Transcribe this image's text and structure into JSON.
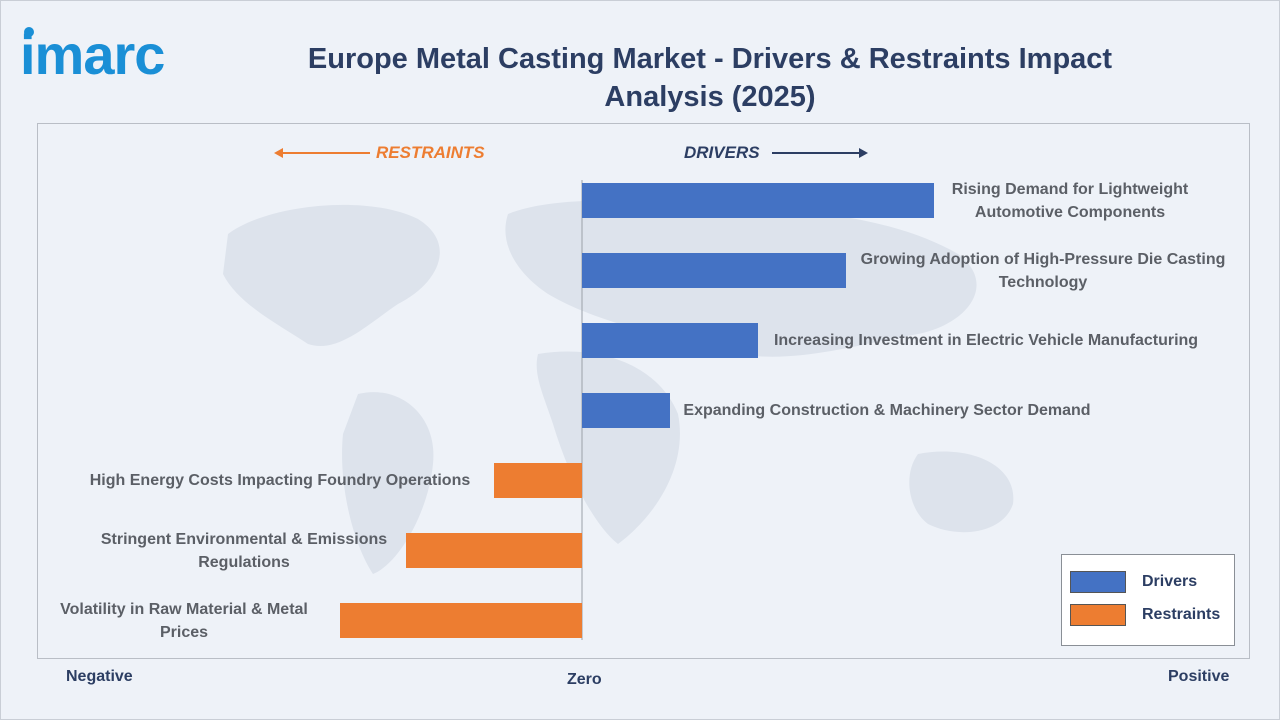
{
  "brand": {
    "logo_text": "imarc"
  },
  "title": "Europe Metal Casting Market - Drivers & Restraints Impact Analysis (2025)",
  "colors": {
    "drivers": "#4472c4",
    "restraints": "#ed7d31",
    "title": "#2c3e63",
    "label": "#5b5f66"
  },
  "direction_labels": {
    "restraints": "RESTRAINTS",
    "drivers": "DRIVERS"
  },
  "axis_labels": {
    "negative": "Negative",
    "zero": "Zero",
    "positive": "Positive"
  },
  "chart_data": {
    "type": "bar",
    "orientation": "horizontal",
    "title": "Europe Metal Casting Market - Drivers & Restraints Impact Analysis (2025)",
    "categories": [
      "Rising Demand for Lightweight Automotive Components",
      "Growing Adoption of High-Pressure Die Casting Technology",
      "Increasing Investment in Electric Vehicle Manufacturing",
      "Expanding Construction & Machinery Sector Demand",
      "High Energy Costs Impacting Foundry Operations",
      "Stringent Environmental & Emissions Regulations",
      "Volatility in Raw Material & Metal Prices"
    ],
    "values": [
      4,
      3,
      2,
      1,
      -1,
      -2,
      -2.75
    ],
    "series_type": [
      "Drivers",
      "Drivers",
      "Drivers",
      "Drivers",
      "Restraints",
      "Restraints",
      "Restraints"
    ],
    "xlim": [
      -6,
      6
    ],
    "legend": [
      "Drivers",
      "Restraints"
    ],
    "legend_position": "bottom-right",
    "grid": false
  }
}
